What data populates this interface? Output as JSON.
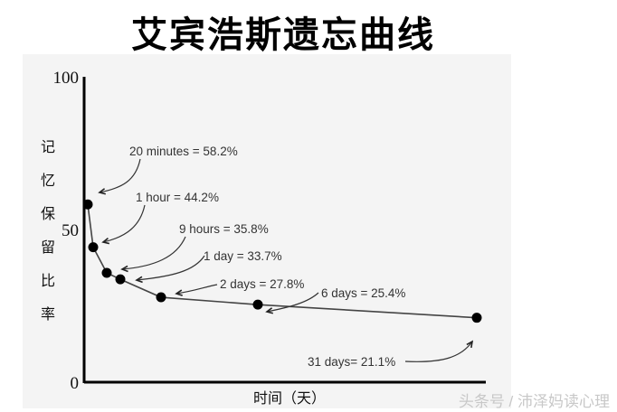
{
  "title": "艾宾浩斯遗忘曲线",
  "watermark": "头条号 / 沛泽妈读心理",
  "chart_data": {
    "type": "line",
    "title": "艾宾浩斯遗忘曲线",
    "xlabel": "时间（天）",
    "ylabel": "记忆保留比率",
    "ylabel_chars": [
      "记",
      "忆",
      "保",
      "留",
      "比",
      "率"
    ],
    "ylim": [
      0,
      100
    ],
    "yticks": [
      "0",
      "50",
      "100"
    ],
    "grid": false,
    "points": [
      {
        "time": "20 minutes",
        "value": 58.2,
        "label": "20 minutes = 58.2%"
      },
      {
        "time": "1 hour",
        "value": 44.2,
        "label": "1 hour = 44.2%"
      },
      {
        "time": "9 hours",
        "value": 35.8,
        "label": "9 hours = 35.8%"
      },
      {
        "time": "1 day",
        "value": 33.7,
        "label": "1 day = 33.7%"
      },
      {
        "time": "2 days",
        "value": 27.8,
        "label": "2 days = 27.8%"
      },
      {
        "time": "6 days",
        "value": 25.4,
        "label": "6 days = 25.4%"
      },
      {
        "time": "31 days",
        "value": 21.1,
        "label": "31 days= 21.1%"
      }
    ],
    "colors": {
      "line": "#444444",
      "marker": "#000000",
      "axis": "#000000"
    }
  }
}
